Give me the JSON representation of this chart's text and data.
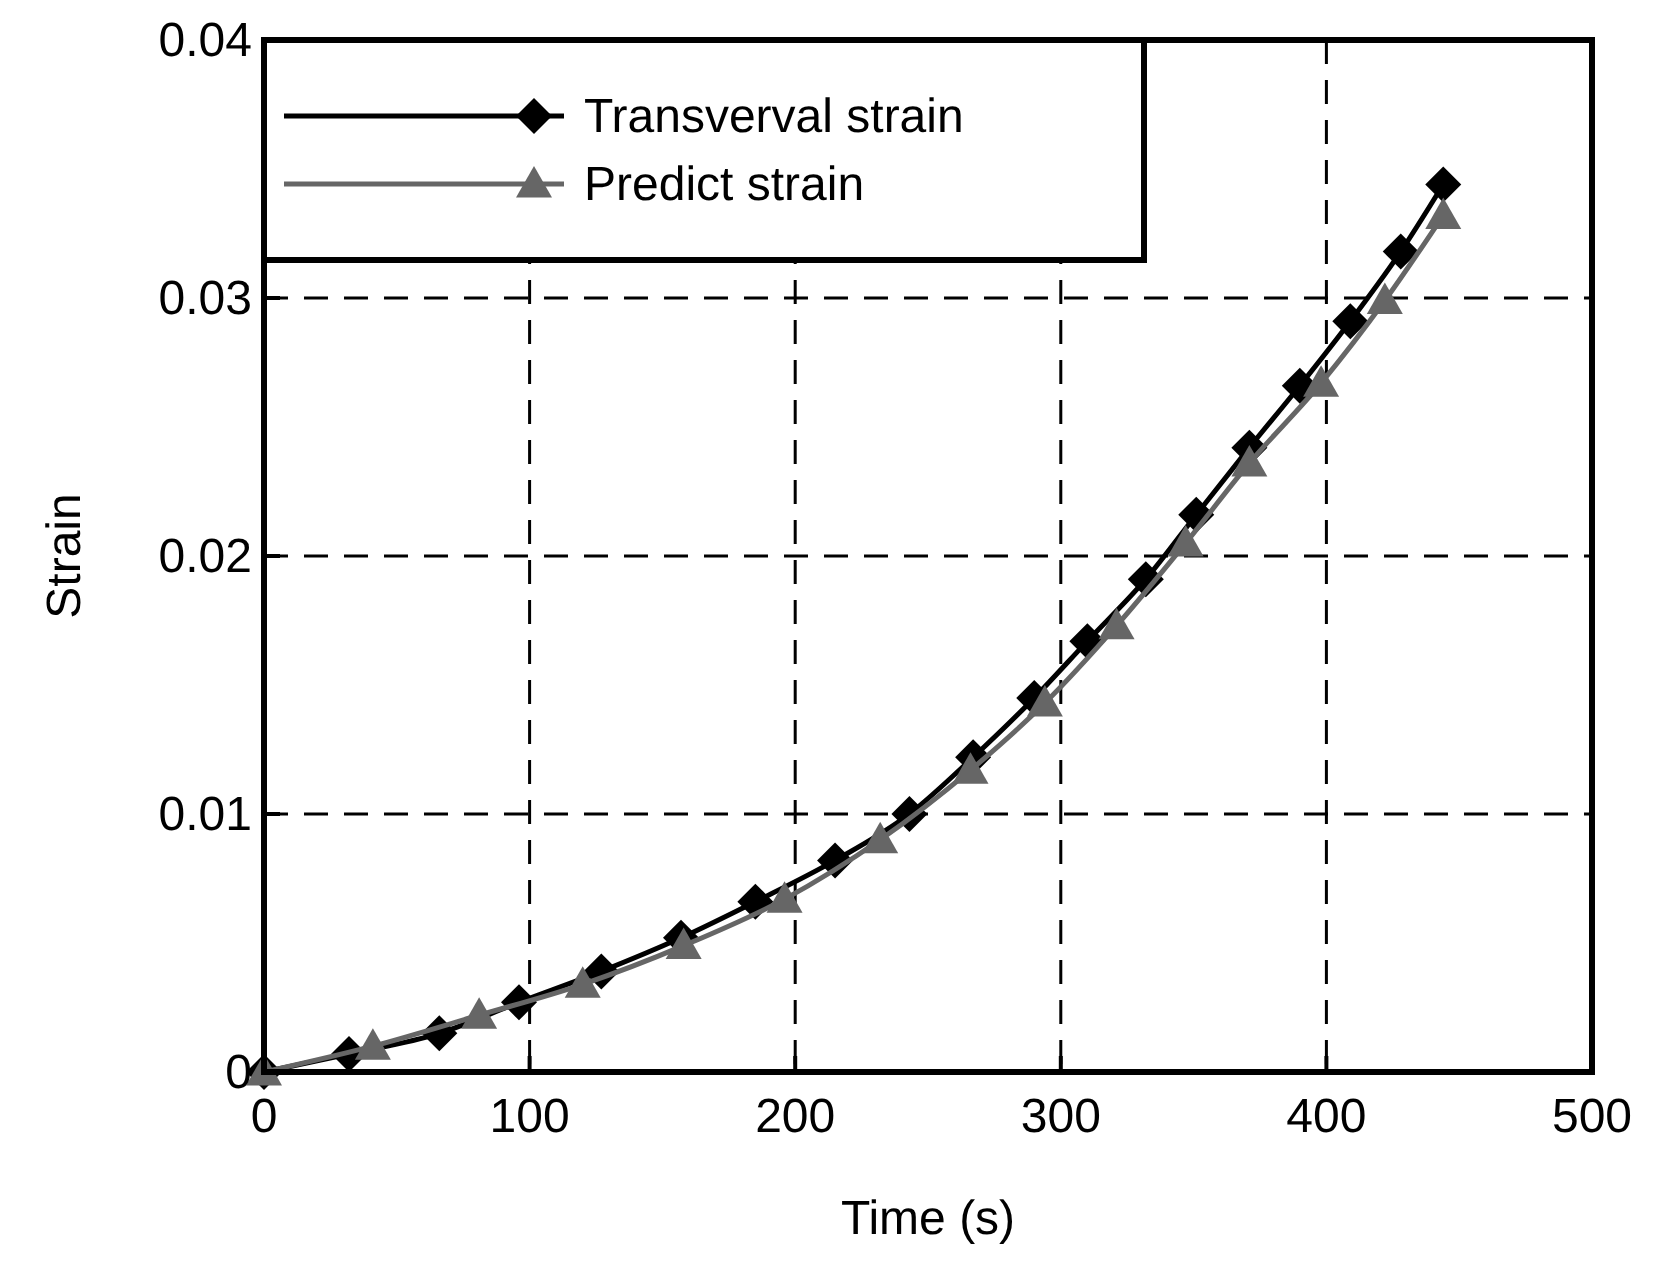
{
  "chart_data": {
    "type": "line",
    "xlabel": "Time (s)",
    "ylabel": "Strain",
    "xlim": [
      0,
      500
    ],
    "xticks": [
      0,
      100,
      200,
      300,
      400,
      500
    ],
    "ylim": [
      0,
      0.04
    ],
    "yticks": [
      0,
      0.01,
      0.02,
      0.03,
      0.04
    ],
    "grid": true,
    "legend": "top left",
    "line_style": "solid",
    "series": [
      {
        "name": "Transverval strain",
        "color": "#000000",
        "marker": "diamond",
        "x": [
          0,
          32,
          66,
          96,
          127,
          157,
          185,
          215,
          243,
          267,
          290,
          310,
          332,
          351,
          371,
          390,
          409,
          428,
          444
        ],
        "values": [
          0,
          0.0007,
          0.0015,
          0.0027,
          0.0039,
          0.0052,
          0.0066,
          0.0082,
          0.01,
          0.0122,
          0.0145,
          0.0167,
          0.0191,
          0.0216,
          0.0242,
          0.0266,
          0.0291,
          0.0318,
          0.0344
        ]
      },
      {
        "name": "Predict strain",
        "color": "#666666",
        "marker": "triangle",
        "x": [
          0,
          41,
          81,
          120,
          158,
          196,
          232,
          266,
          294,
          321,
          347,
          371,
          398,
          422,
          444
        ],
        "values": [
          0,
          0.001,
          0.0022,
          0.0034,
          0.0049,
          0.0067,
          0.009,
          0.0117,
          0.0143,
          0.0173,
          0.0205,
          0.0236,
          0.0267,
          0.0299,
          0.0332
        ]
      }
    ]
  }
}
